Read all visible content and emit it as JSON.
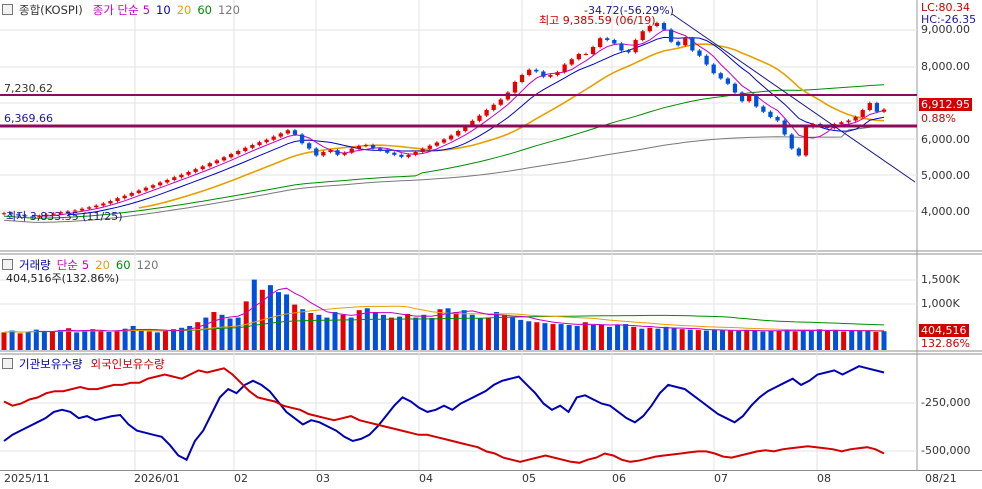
{
  "price_panel": {
    "legend": {
      "name": "종합(KOSPI)",
      "ma_label": "종가 단순",
      "periods": [
        "5",
        "10",
        "20",
        "60",
        "120"
      ],
      "colors": [
        "#c800c8",
        "#0000c8",
        "#e6a000",
        "#008c00",
        "#787878"
      ]
    },
    "hline_upper": "7,230.62",
    "hline_lower": "6,369.66",
    "high_annotation": "최고 9,385.59 (06/19)",
    "low_annotation": "최저 3,833.35 (11/25)",
    "change_annotation": "-34.72(-56.29%)",
    "lc": "LC:80.34",
    "hc": "HC:-26.35",
    "current_price": "6,912.95",
    "pct_box": "0.88%",
    "y_ticks": [
      "9,000.00",
      "8,000.00",
      "7,000.00",
      "6,000.00",
      "5,000.00",
      "4,000.00"
    ]
  },
  "volume_panel": {
    "legend": {
      "name": "거래량",
      "ma_label": "단순",
      "periods": [
        "5",
        "20",
        "60",
        "120"
      ],
      "colors": [
        "#c800c8",
        "#e6a000",
        "#008c00",
        "#787878"
      ]
    },
    "current": "404,516주(132.86%)",
    "y_ticks": [
      "1,500K",
      "1,000K"
    ],
    "value_box": "404,516",
    "pct_box": "132.86%"
  },
  "holdings_panel": {
    "legend": {
      "series1": "기관보유수량",
      "series2": "외국인보유수량",
      "colors": [
        "#0000b4",
        "#d20000"
      ]
    },
    "y_ticks": [
      "-250,000",
      "-500,000"
    ]
  },
  "date_axis": {
    "labels": [
      "2025/11",
      "2026/01",
      "02",
      "03",
      "04",
      "05",
      "06",
      "07",
      "08",
      "08/21"
    ]
  },
  "chart_data": [
    {
      "type": "line",
      "title": "",
      "ylabel": "",
      "ylim": [
        3300,
        9700
      ],
      "series": [
        {
          "name": "종합(KOSPI)",
          "values": [
            3950,
            3920,
            3890,
            3860,
            3833,
            3870,
            3910,
            3940,
            3980,
            4000,
            4030,
            4080,
            4120,
            4170,
            4230,
            4300,
            4380,
            4450,
            4530,
            4600,
            4680,
            4750,
            4830,
            4900,
            4980,
            5050,
            5130,
            5210,
            5290,
            5380,
            5460,
            5550,
            5640,
            5730,
            5820,
            5900,
            5980,
            6050,
            6140,
            6230,
            6320,
            6200,
            5950,
            5800,
            5600,
            5700,
            5750,
            5620,
            5680,
            5800,
            5870,
            5900,
            5800,
            5750,
            5680,
            5620,
            5560,
            5620,
            5700,
            5790,
            5880,
            5970,
            6060,
            6170,
            6300,
            6440,
            6590,
            6740,
            6900,
            7050,
            7200,
            7400,
            7700,
            7900,
            8050,
            8000,
            7850,
            7900,
            7980,
            8200,
            8350,
            8500,
            8500,
            8700,
            8950,
            8900,
            8800,
            8600,
            8550,
            8900,
            9150,
            9300,
            9385,
            9200,
            8850,
            8750,
            8950,
            8600,
            8450,
            8200,
            7950,
            7800,
            7650,
            7400,
            7150,
            7300,
            7000,
            6850,
            6700,
            6600,
            6200,
            5800,
            5600,
            6400,
            6500,
            6450,
            6380,
            6500,
            6550,
            6600,
            6700,
            6900,
            7100,
            6850,
            6913
          ]
        }
      ]
    },
    {
      "type": "bar",
      "title": "거래량",
      "ylabel": "",
      "ylim": [
        0,
        1900000
      ],
      "series": [
        {
          "name": "거래량",
          "values": [
            380000,
            420000,
            360000,
            400000,
            440000,
            390000,
            410000,
            430000,
            470000,
            380000,
            410000,
            450000,
            420000,
            390000,
            410000,
            460000,
            520000,
            430000,
            400000,
            380000,
            420000,
            450000,
            480000,
            520000,
            600000,
            700000,
            820000,
            760000,
            680000,
            700000,
            1050000,
            1520000,
            1300000,
            1400000,
            1250000,
            1200000,
            980000,
            880000,
            800000,
            760000,
            700000,
            820000,
            760000,
            700000,
            860000,
            900000,
            820000,
            760000,
            700000,
            720000,
            780000,
            700000,
            760000,
            690000,
            880000,
            900000,
            820000,
            860000,
            760000,
            690000,
            700000,
            820000,
            760000,
            700000,
            650000,
            620000,
            600000,
            580000,
            560000,
            560000,
            540000,
            520000,
            600000,
            540000,
            540000,
            500000,
            540000,
            560000,
            500000,
            460000,
            480000,
            460000,
            500000,
            470000,
            450000,
            440000,
            430000,
            420000,
            440000,
            430000,
            420000,
            410000,
            430000,
            420000,
            400000,
            420000,
            410000,
            440000,
            400000,
            430000,
            420000,
            450000,
            410000,
            420000,
            400000,
            430000,
            410000,
            420000,
            390000,
            404516
          ]
        }
      ]
    },
    {
      "type": "line",
      "title": "",
      "ylabel": "",
      "ylim": [
        -600000,
        -80000
      ],
      "series": [
        {
          "name": "기관보유수량",
          "values": [
            -470000,
            -440000,
            -420000,
            -400000,
            -380000,
            -360000,
            -330000,
            -320000,
            -330000,
            -360000,
            -350000,
            -370000,
            -360000,
            -350000,
            -345000,
            -390000,
            -420000,
            -430000,
            -440000,
            -450000,
            -490000,
            -540000,
            -560000,
            -470000,
            -420000,
            -340000,
            -260000,
            -220000,
            -240000,
            -200000,
            -180000,
            -200000,
            -230000,
            -280000,
            -330000,
            -360000,
            -390000,
            -370000,
            -380000,
            -400000,
            -420000,
            -450000,
            -470000,
            -460000,
            -440000,
            -400000,
            -350000,
            -300000,
            -260000,
            -280000,
            -310000,
            -330000,
            -320000,
            -300000,
            -320000,
            -290000,
            -270000,
            -250000,
            -230000,
            -200000,
            -180000,
            -170000,
            -160000,
            -200000,
            -240000,
            -290000,
            -320000,
            -300000,
            -330000,
            -260000,
            -250000,
            -270000,
            -290000,
            -300000,
            -330000,
            -360000,
            -380000,
            -350000,
            -300000,
            -240000,
            -200000,
            -210000,
            -220000,
            -250000,
            -280000,
            -310000,
            -340000,
            -360000,
            -380000,
            -350000,
            -300000,
            -260000,
            -230000,
            -210000,
            -190000,
            -170000,
            -200000,
            -180000,
            -150000,
            -140000,
            -130000,
            -150000,
            -130000,
            -110000,
            -120000,
            -130000,
            -140000
          ]
        },
        {
          "name": "외국인보유수량",
          "values": [
            -280000,
            -300000,
            -290000,
            -270000,
            -260000,
            -240000,
            -230000,
            -230000,
            -220000,
            -210000,
            -220000,
            -220000,
            -210000,
            -200000,
            -200000,
            -190000,
            -190000,
            -170000,
            -160000,
            -150000,
            -160000,
            -170000,
            -150000,
            -130000,
            -140000,
            -130000,
            -120000,
            -150000,
            -190000,
            -230000,
            -260000,
            -270000,
            -280000,
            -300000,
            -310000,
            -320000,
            -340000,
            -350000,
            -360000,
            -370000,
            -360000,
            -350000,
            -370000,
            -380000,
            -390000,
            -400000,
            -410000,
            -420000,
            -430000,
            -440000,
            -440000,
            -450000,
            -460000,
            -470000,
            -480000,
            -490000,
            -500000,
            -520000,
            -530000,
            -550000,
            -560000,
            -570000,
            -560000,
            -550000,
            -540000,
            -550000,
            -560000,
            -570000,
            -575000,
            -560000,
            -550000,
            -530000,
            -540000,
            -560000,
            -570000,
            -565000,
            -555000,
            -545000,
            -540000,
            -535000,
            -530000,
            -525000,
            -520000,
            -520000,
            -530000,
            -545000,
            -550000,
            -540000,
            -530000,
            -520000,
            -515000,
            -520000,
            -510000,
            -505000,
            -500000,
            -495000,
            -500000,
            -505000,
            -510000,
            -520000,
            -510000,
            -505000,
            -500000,
            -510000,
            -530000
          ]
        }
      ]
    }
  ]
}
